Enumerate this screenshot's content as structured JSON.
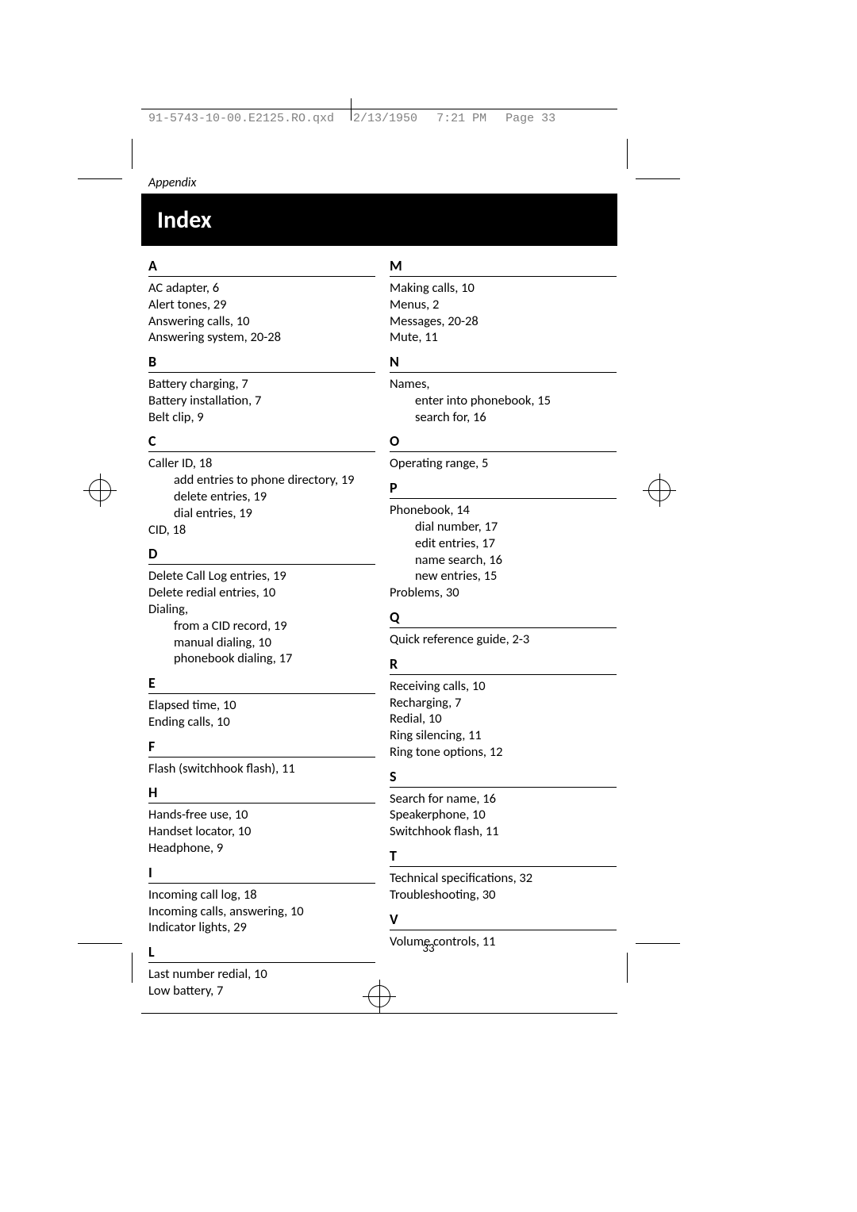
{
  "header": {
    "filename": "91-5743-10-00.E2125.RO.qxd",
    "date": "2/13/1950",
    "time": "7:21 PM",
    "pageinfo": "Page 33"
  },
  "appendix_label": "Appendix",
  "title": "Index",
  "page_number": "33",
  "left": [
    {
      "letter": "A",
      "entries": [
        {
          "t": "AC adapter, 6"
        },
        {
          "t": "Alert tones, 29"
        },
        {
          "t": "Answering calls, 10"
        },
        {
          "t": "Answering system, 20-28"
        }
      ]
    },
    {
      "letter": "B",
      "entries": [
        {
          "t": "Battery charging, 7"
        },
        {
          "t": "Battery installation, 7"
        },
        {
          "t": "Belt clip, 9"
        }
      ]
    },
    {
      "letter": "C",
      "entries": [
        {
          "t": "Caller ID, 18"
        },
        {
          "t": "add entries to phone directory, 19",
          "sub": true
        },
        {
          "t": "delete entries, 19",
          "sub": true
        },
        {
          "t": "dial entries, 19",
          "sub": true
        },
        {
          "t": "CID, 18"
        }
      ]
    },
    {
      "letter": "D",
      "entries": [
        {
          "t": "Delete Call Log entries, 19"
        },
        {
          "t": "Delete redial entries, 10"
        },
        {
          "t": "Dialing,"
        },
        {
          "t": "from a CID record, 19",
          "sub": true
        },
        {
          "t": "manual dialing, 10",
          "sub": true
        },
        {
          "t": "phonebook dialing, 17",
          "sub": true
        }
      ]
    },
    {
      "letter": "E",
      "entries": [
        {
          "t": "Elapsed time, 10"
        },
        {
          "t": "Ending calls, 10"
        }
      ]
    },
    {
      "letter": "F",
      "entries": [
        {
          "t": "Flash (switchhook flash), 11"
        }
      ]
    },
    {
      "letter": "H",
      "entries": [
        {
          "t": "Hands-free use, 10"
        },
        {
          "t": "Handset locator, 10"
        },
        {
          "t": "Headphone, 9"
        }
      ]
    },
    {
      "letter": "I",
      "entries": [
        {
          "t": "Incoming call log, 18"
        },
        {
          "t": "Incoming calls, answering, 10"
        },
        {
          "t": "Indicator lights, 29"
        }
      ]
    },
    {
      "letter": "L",
      "entries": [
        {
          "t": "Last number redial, 10"
        },
        {
          "t": "Low battery, 7"
        }
      ]
    }
  ],
  "right": [
    {
      "letter": "M",
      "entries": [
        {
          "t": "Making calls, 10"
        },
        {
          "t": "Menus, 2"
        },
        {
          "t": "Messages, 20-28"
        },
        {
          "t": "Mute, 11"
        }
      ]
    },
    {
      "letter": "N",
      "entries": [
        {
          "t": "Names,"
        },
        {
          "t": "enter into phonebook, 15",
          "sub": true
        },
        {
          "t": "search for, 16",
          "sub": true
        }
      ]
    },
    {
      "letter": "O",
      "entries": [
        {
          "t": "Operating range, 5"
        }
      ]
    },
    {
      "letter": "P",
      "entries": [
        {
          "t": "Phonebook, 14"
        },
        {
          "t": "dial number, 17",
          "sub": true
        },
        {
          "t": "edit entries, 17",
          "sub": true
        },
        {
          "t": "name search, 16",
          "sub": true
        },
        {
          "t": "new entries, 15",
          "sub": true
        },
        {
          "t": "Problems, 30"
        }
      ]
    },
    {
      "letter": "Q",
      "entries": [
        {
          "t": "Quick reference guide, 2-3"
        }
      ]
    },
    {
      "letter": "R",
      "entries": [
        {
          "t": "Receiving calls, 10"
        },
        {
          "t": "Recharging, 7"
        },
        {
          "t": "Redial, 10"
        },
        {
          "t": "Ring silencing, 11"
        },
        {
          "t": "Ring tone options, 12"
        }
      ]
    },
    {
      "letter": "S",
      "entries": [
        {
          "t": "Search for name, 16"
        },
        {
          "t": "Speakerphone, 10"
        },
        {
          "t": "Switchhook flash, 11"
        }
      ]
    },
    {
      "letter": "T",
      "entries": [
        {
          "t": "Technical specifications, 32"
        },
        {
          "t": "Troubleshooting, 30"
        }
      ]
    },
    {
      "letter": "V",
      "entries": [
        {
          "t": "Volume controls, 11"
        }
      ]
    }
  ]
}
